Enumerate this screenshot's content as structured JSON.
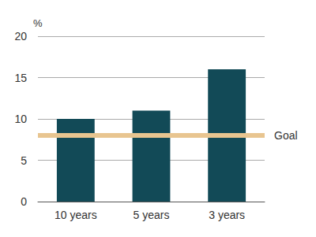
{
  "chart_data": {
    "type": "bar",
    "categories": [
      "10 years",
      "5 years",
      "3 years"
    ],
    "values": [
      10,
      11,
      16
    ],
    "color": "#124a57",
    "ylabel": "%",
    "ylim": [
      0,
      20
    ],
    "yticks": [
      0,
      5,
      10,
      15,
      20
    ],
    "grid": true,
    "reference_line": {
      "value": 8,
      "label": "Goal",
      "color": "#e8c590"
    }
  }
}
